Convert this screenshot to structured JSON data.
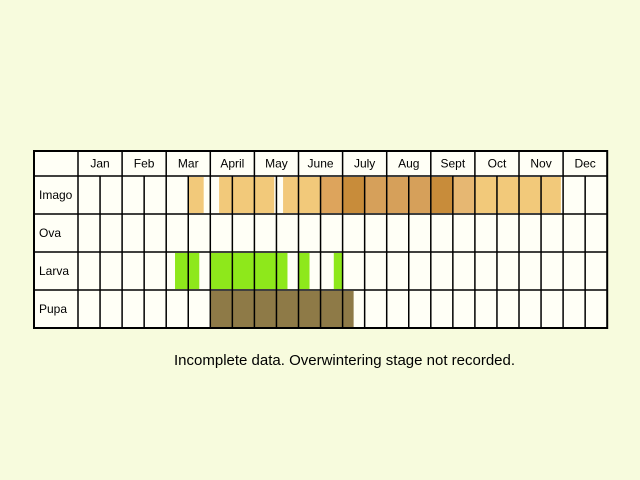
{
  "chart_data": {
    "type": "heatmap",
    "title": "",
    "months": [
      "Jan",
      "Feb",
      "Mar",
      "April",
      "May",
      "June",
      "July",
      "Aug",
      "Sept",
      "Oct",
      "Nov",
      "Dec"
    ],
    "periods_per_month": 2,
    "stages": [
      {
        "name": "Imago",
        "blocks": [
          {
            "from": 2.5,
            "to": 2.85,
            "color": "#f2c97a"
          },
          {
            "from": 3.2,
            "to": 4.45,
            "color": "#f2c97a"
          },
          {
            "from": 4.65,
            "to": 5.5,
            "color": "#f2c97a"
          },
          {
            "from": 5.5,
            "to": 6.0,
            "color": "#dda45c"
          },
          {
            "from": 6.0,
            "to": 6.5,
            "color": "#c88c3a"
          },
          {
            "from": 6.5,
            "to": 8.0,
            "color": "#d6a05a"
          },
          {
            "from": 8.0,
            "to": 8.5,
            "color": "#c88c3a"
          },
          {
            "from": 8.5,
            "to": 9.0,
            "color": "#e6b772"
          },
          {
            "from": 9.0,
            "to": 10.95,
            "color": "#f2c97a"
          }
        ]
      },
      {
        "name": "Ova",
        "blocks": []
      },
      {
        "name": "Larva",
        "blocks": [
          {
            "from": 2.2,
            "to": 2.75,
            "color": "#8ee81b"
          },
          {
            "from": 3.0,
            "to": 4.75,
            "color": "#8ee81b"
          },
          {
            "from": 5.0,
            "to": 5.25,
            "color": "#8ee81b"
          },
          {
            "from": 5.8,
            "to": 6.0,
            "color": "#8ee81b"
          }
        ]
      },
      {
        "name": "Pupa",
        "blocks": [
          {
            "from": 3.0,
            "to": 6.25,
            "color": "#8e7a47"
          }
        ]
      }
    ]
  },
  "note": "Incomplete data. Overwintering stage not recorded."
}
